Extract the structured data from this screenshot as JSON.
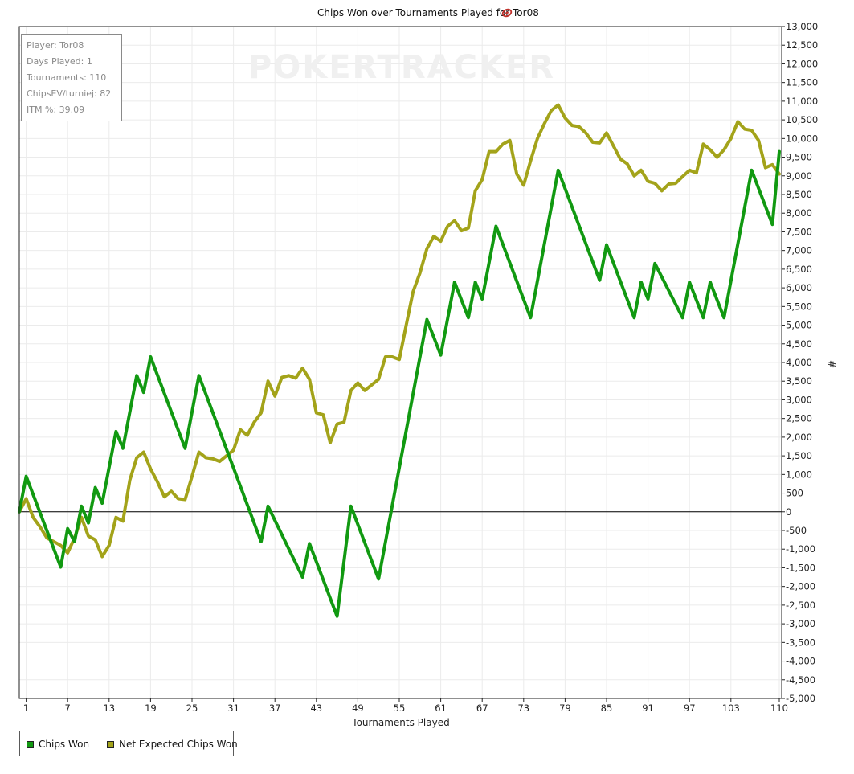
{
  "chart_data": {
    "type": "line",
    "title": "Chips Won over Tournaments Played for Tor08",
    "xlabel": "Tournaments Played",
    "ylabel": "#",
    "xlim": [
      0,
      110
    ],
    "ylim": [
      -5000,
      13000
    ],
    "x_ticks": [
      1,
      7,
      13,
      19,
      25,
      31,
      37,
      43,
      49,
      55,
      61,
      67,
      73,
      79,
      85,
      91,
      97,
      103,
      110
    ],
    "y_ticks": [
      13000,
      12500,
      12000,
      11500,
      11000,
      10500,
      10000,
      9500,
      9000,
      8500,
      8000,
      7500,
      7000,
      6500,
      6000,
      5500,
      5000,
      4500,
      4000,
      3500,
      3000,
      2500,
      2000,
      1500,
      1000,
      500,
      0,
      -500,
      -1000,
      -1500,
      -2000,
      -2500,
      -3000,
      -3500,
      -4000,
      -4500,
      -5000
    ],
    "y_tick_labels": [
      "13,000",
      "12,500",
      "12,000",
      "11,500",
      "11,000",
      "10,500",
      "10,000",
      "9,500",
      "9,000",
      "8,500",
      "8,000",
      "7,500",
      "7,000",
      "6,500",
      "6,000",
      "5,500",
      "5,000",
      "4,500",
      "4,000",
      "3,500",
      "3,000",
      "2,500",
      "2,000",
      "1,500",
      "1,000",
      "500",
      "0",
      "-500",
      "-1,000",
      "-1,500",
      "-2,000",
      "-2,500",
      "-3,000",
      "-3,500",
      "-4,000",
      "-4,500",
      "-5,000"
    ],
    "grid": true,
    "legend_position": "bottom-left",
    "series": [
      {
        "name": "Chips Won",
        "color": "#119911",
        "points": [
          [
            0,
            0
          ],
          [
            1,
            950
          ],
          [
            6,
            -1480
          ],
          [
            7,
            -450
          ],
          [
            8,
            -800
          ],
          [
            9,
            150
          ],
          [
            10,
            -300
          ],
          [
            11,
            650
          ],
          [
            12,
            230
          ],
          [
            14,
            2150
          ],
          [
            15,
            1700
          ],
          [
            17,
            3650
          ],
          [
            18,
            3200
          ],
          [
            19,
            4150
          ],
          [
            24,
            1700
          ],
          [
            26,
            3650
          ],
          [
            35,
            -800
          ],
          [
            36,
            150
          ],
          [
            41,
            -1750
          ],
          [
            42,
            -850
          ],
          [
            46,
            -2800
          ],
          [
            48,
            150
          ],
          [
            52,
            -1800
          ],
          [
            59,
            5150
          ],
          [
            61,
            4200
          ],
          [
            63,
            6150
          ],
          [
            65,
            5200
          ],
          [
            66,
            6150
          ],
          [
            67,
            5700
          ],
          [
            69,
            7650
          ],
          [
            74,
            5200
          ],
          [
            78,
            9150
          ],
          [
            84,
            6200
          ],
          [
            85,
            7150
          ],
          [
            89,
            5200
          ],
          [
            90,
            6150
          ],
          [
            91,
            5700
          ],
          [
            92,
            6650
          ],
          [
            96,
            5200
          ],
          [
            97,
            6150
          ],
          [
            99,
            5200
          ],
          [
            100,
            6150
          ],
          [
            102,
            5200
          ],
          [
            106,
            9150
          ],
          [
            109,
            7700
          ],
          [
            110,
            9650
          ]
        ]
      },
      {
        "name": "Net Expected Chips Won",
        "color": "#a3a31a",
        "points": [
          [
            0,
            0
          ],
          [
            1,
            350
          ],
          [
            2,
            -150
          ],
          [
            3,
            -400
          ],
          [
            4,
            -700
          ],
          [
            5,
            -800
          ],
          [
            6,
            -900
          ],
          [
            7,
            -1100
          ],
          [
            8,
            -700
          ],
          [
            9,
            -150
          ],
          [
            10,
            -650
          ],
          [
            11,
            -750
          ],
          [
            12,
            -1200
          ],
          [
            13,
            -900
          ],
          [
            14,
            -150
          ],
          [
            15,
            -250
          ],
          [
            16,
            850
          ],
          [
            17,
            1450
          ],
          [
            18,
            1600
          ],
          [
            19,
            1150
          ],
          [
            20,
            800
          ],
          [
            21,
            400
          ],
          [
            22,
            550
          ],
          [
            23,
            350
          ],
          [
            24,
            330
          ],
          [
            25,
            950
          ],
          [
            26,
            1600
          ],
          [
            27,
            1450
          ],
          [
            28,
            1420
          ],
          [
            29,
            1350
          ],
          [
            30,
            1500
          ],
          [
            31,
            1650
          ],
          [
            32,
            2200
          ],
          [
            33,
            2050
          ],
          [
            34,
            2400
          ],
          [
            35,
            2650
          ],
          [
            36,
            3500
          ],
          [
            37,
            3100
          ],
          [
            38,
            3600
          ],
          [
            39,
            3650
          ],
          [
            40,
            3580
          ],
          [
            41,
            3850
          ],
          [
            42,
            3550
          ],
          [
            43,
            2650
          ],
          [
            44,
            2600
          ],
          [
            45,
            1850
          ],
          [
            46,
            2350
          ],
          [
            47,
            2400
          ],
          [
            48,
            3250
          ],
          [
            49,
            3450
          ],
          [
            50,
            3250
          ],
          [
            51,
            3400
          ],
          [
            52,
            3550
          ],
          [
            53,
            4150
          ],
          [
            54,
            4150
          ],
          [
            55,
            4080
          ],
          [
            56,
            5000
          ],
          [
            57,
            5900
          ],
          [
            58,
            6400
          ],
          [
            59,
            7050
          ],
          [
            60,
            7380
          ],
          [
            61,
            7250
          ],
          [
            62,
            7650
          ],
          [
            63,
            7800
          ],
          [
            64,
            7530
          ],
          [
            65,
            7600
          ],
          [
            66,
            8600
          ],
          [
            67,
            8900
          ],
          [
            68,
            9650
          ],
          [
            69,
            9650
          ],
          [
            70,
            9850
          ],
          [
            71,
            9950
          ],
          [
            72,
            9050
          ],
          [
            73,
            8750
          ],
          [
            74,
            9400
          ],
          [
            75,
            10000
          ],
          [
            76,
            10400
          ],
          [
            77,
            10750
          ],
          [
            78,
            10900
          ],
          [
            79,
            10550
          ],
          [
            80,
            10350
          ],
          [
            81,
            10320
          ],
          [
            82,
            10150
          ],
          [
            83,
            9900
          ],
          [
            84,
            9880
          ],
          [
            85,
            10150
          ],
          [
            86,
            9800
          ],
          [
            87,
            9450
          ],
          [
            88,
            9320
          ],
          [
            89,
            9000
          ],
          [
            90,
            9150
          ],
          [
            91,
            8850
          ],
          [
            92,
            8800
          ],
          [
            93,
            8600
          ],
          [
            94,
            8780
          ],
          [
            95,
            8800
          ],
          [
            96,
            8980
          ],
          [
            97,
            9150
          ],
          [
            98,
            9080
          ],
          [
            99,
            9850
          ],
          [
            100,
            9700
          ],
          [
            101,
            9500
          ],
          [
            102,
            9700
          ],
          [
            103,
            10000
          ],
          [
            104,
            10450
          ],
          [
            105,
            10250
          ],
          [
            106,
            10220
          ],
          [
            107,
            9950
          ],
          [
            108,
            9220
          ],
          [
            109,
            9300
          ],
          [
            110,
            9050
          ]
        ]
      }
    ]
  },
  "watermark": "POKERTRACKER",
  "stats": {
    "player": "Player: Tor08",
    "days_played": "Days Played: 1",
    "tournaments": "Tournaments: 110",
    "chipsev": "ChipsEV/turniej: 82",
    "itm": "ITM %: 39.09"
  },
  "legend": {
    "chips_won": "Chips Won",
    "net_expected": "Net Expected Chips Won",
    "chips_won_color": "#119911",
    "net_expected_color": "#a3a31a"
  },
  "colors": {
    "grid": "#ebebeb",
    "zero_line": "#000000",
    "icon_red": "#c0302a"
  },
  "icon": "poker-chip-icon"
}
